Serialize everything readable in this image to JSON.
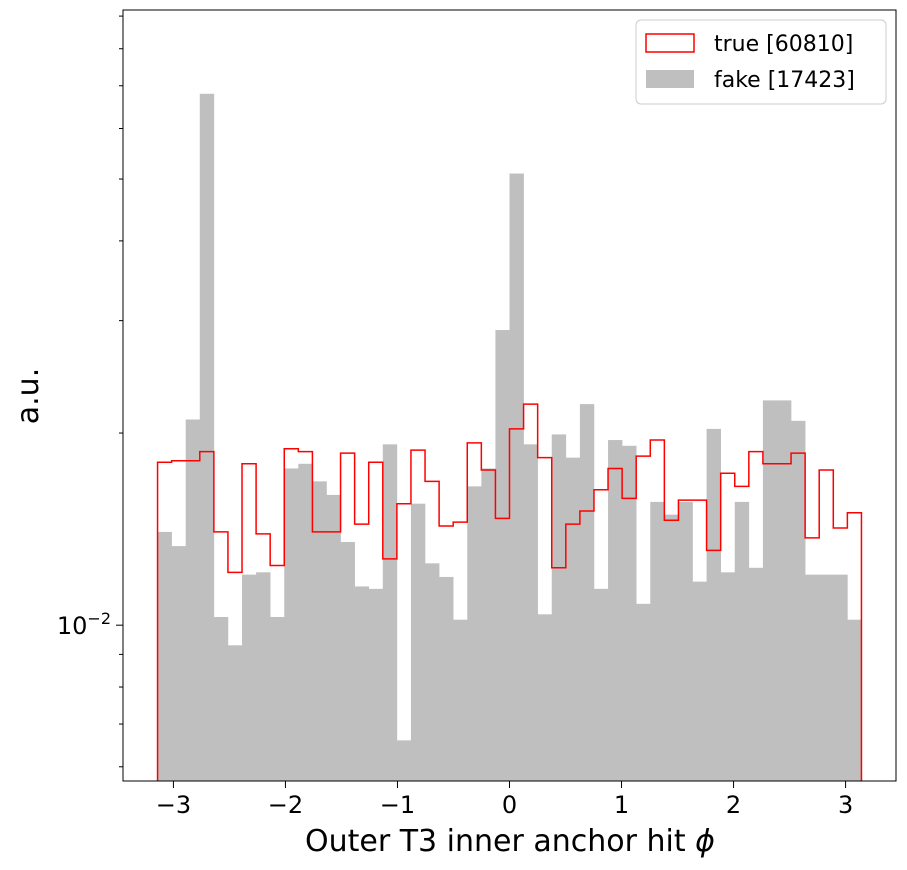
{
  "chart_data": {
    "type": "histogram",
    "xlabel": "Outer T3 inner anchor hit",
    "xlabel_symbol": "ϕ",
    "ylabel": "a.u.",
    "yscale": "log",
    "xlim": [
      -3.45,
      3.45
    ],
    "ylim": [
      0.0057,
      0.092
    ],
    "x_ticks": [
      -3,
      -2,
      -1,
      0,
      1,
      2,
      3
    ],
    "x_tick_labels": [
      "−3",
      "−2",
      "−1",
      "0",
      "1",
      "2",
      "3"
    ],
    "y_tick_label": {
      "base": "10",
      "exponent": "−2",
      "value": 0.01
    },
    "legend_position": "top-right",
    "bin_range": [
      -3.1416,
      3.1416
    ],
    "bin_count": 50,
    "series": [
      {
        "name": "true [60810]",
        "style": "step",
        "color": "#ff0000",
        "values": [
          0.018,
          0.0181,
          0.0181,
          0.0187,
          0.014,
          0.0121,
          0.0179,
          0.0139,
          0.0124,
          0.0189,
          0.0187,
          0.014,
          0.014,
          0.0186,
          0.0144,
          0.018,
          0.0127,
          0.0155,
          0.0188,
          0.0168,
          0.0143,
          0.0145,
          0.0193,
          0.0175,
          0.0147,
          0.0203,
          0.0222,
          0.0183,
          0.0123,
          0.0144,
          0.0151,
          0.0163,
          0.0176,
          0.0158,
          0.0184,
          0.0195,
          0.0146,
          0.0157,
          0.0157,
          0.0131,
          0.0173,
          0.0165,
          0.0187,
          0.0179,
          0.0179,
          0.0186,
          0.0137,
          0.0175,
          0.0142,
          0.015
        ]
      },
      {
        "name": "fake [17423]",
        "style": "filled",
        "color": "#bfbfbf",
        "values": [
          0.014,
          0.0133,
          0.021,
          0.068,
          0.0103,
          0.0093,
          0.012,
          0.0121,
          0.0103,
          0.0176,
          0.0179,
          0.0168,
          0.016,
          0.0135,
          0.0115,
          0.0114,
          0.0192,
          0.0066,
          0.0155,
          0.0125,
          0.0119,
          0.0102,
          0.0165,
          0.0176,
          0.029,
          0.051,
          0.0192,
          0.0104,
          0.0199,
          0.0183,
          0.0222,
          0.0114,
          0.0195,
          0.0191,
          0.0108,
          0.0156,
          0.0149,
          0.0156,
          0.0117,
          0.0203,
          0.0121,
          0.0156,
          0.0123,
          0.0225,
          0.0225,
          0.0209,
          0.012,
          0.012,
          0.012,
          0.0102
        ]
      }
    ]
  }
}
